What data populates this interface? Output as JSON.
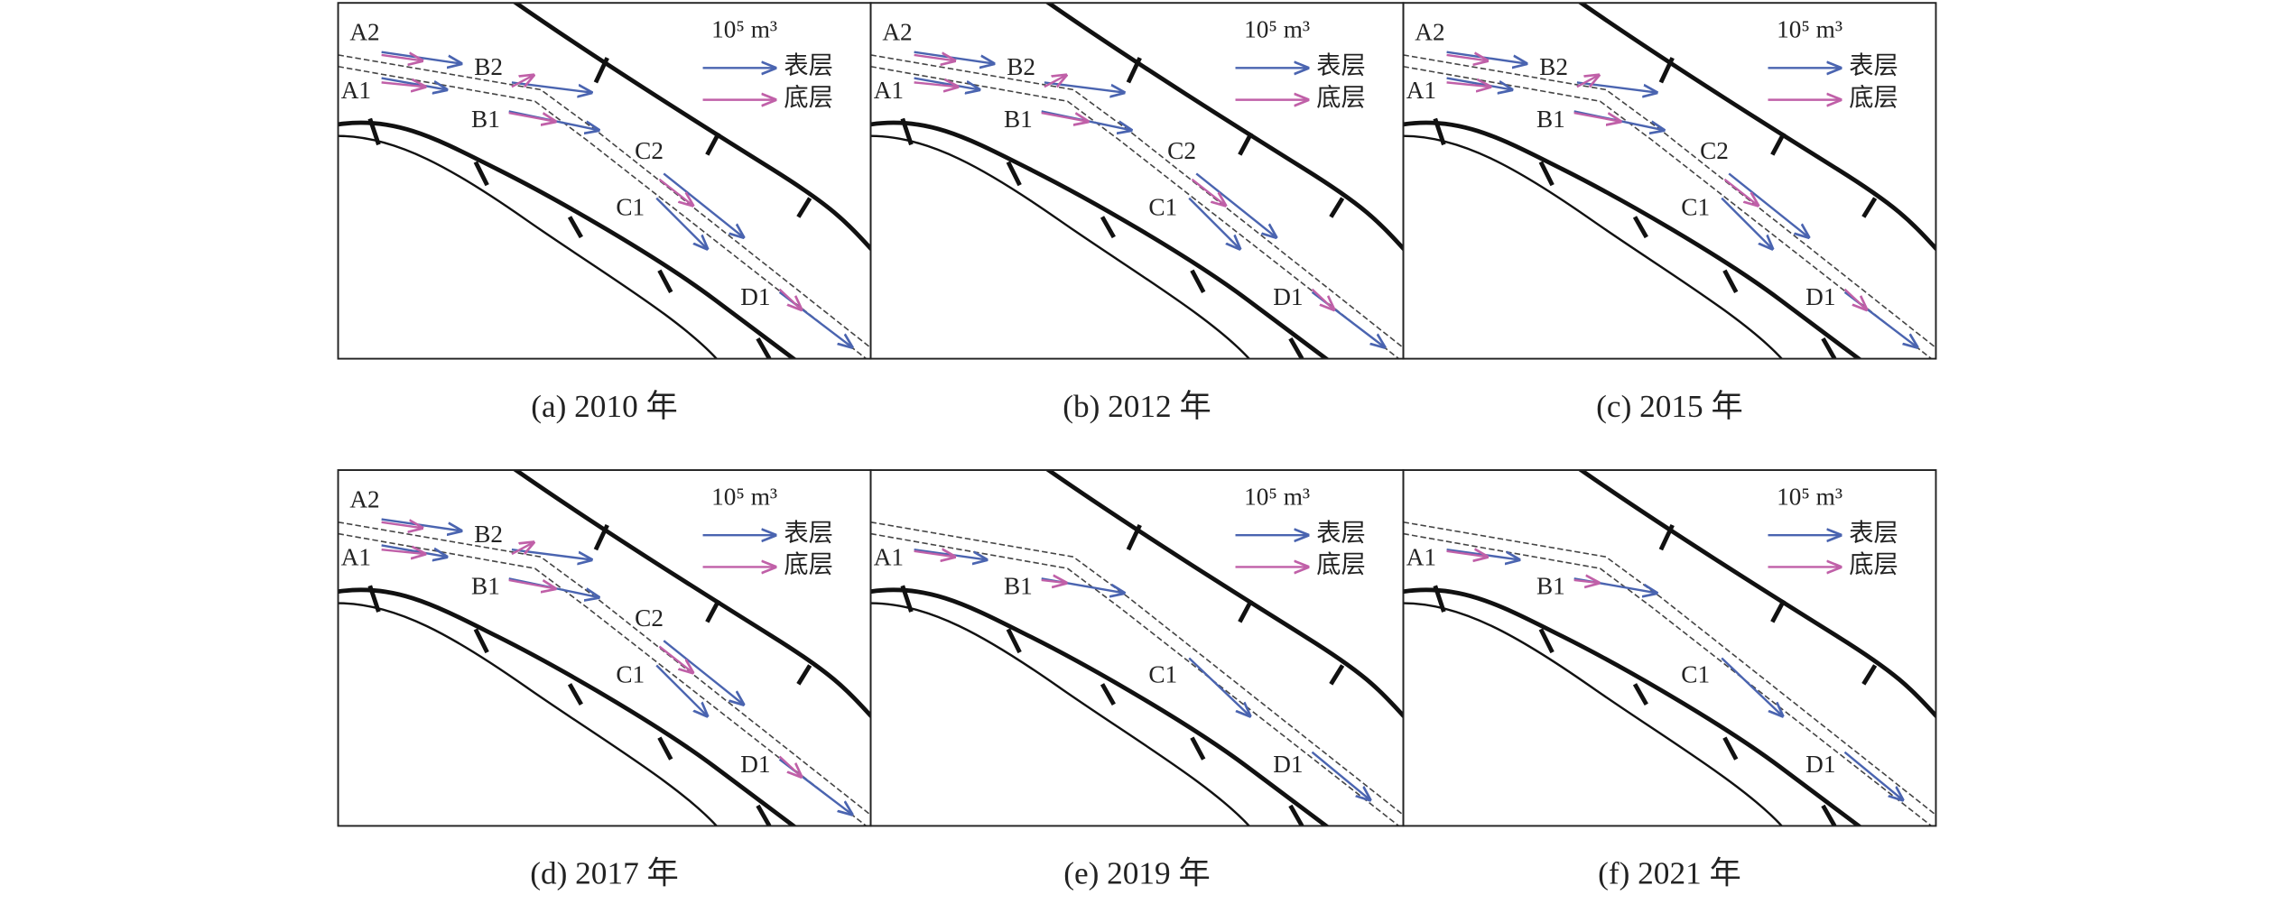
{
  "legend": {
    "unit": "10⁵ m³",
    "surface": "表层",
    "bottom": "底层"
  },
  "panels": [
    {
      "caption": "(a) 2010 年",
      "stations": [
        "A2",
        "B2",
        "A1",
        "B1",
        "C2",
        "C1",
        "D1"
      ]
    },
    {
      "caption": "(b) 2012 年",
      "stations": [
        "A2",
        "B2",
        "A1",
        "B1",
        "C2",
        "C1",
        "D1"
      ]
    },
    {
      "caption": "(c) 2015 年",
      "stations": [
        "A2",
        "B2",
        "A1",
        "B1",
        "C2",
        "C1",
        "D1"
      ]
    },
    {
      "caption": "(d) 2017 年",
      "stations": [
        "A2",
        "B2",
        "A1",
        "B1",
        "C2",
        "C1",
        "D1"
      ]
    },
    {
      "caption": "(e) 2019 年",
      "stations": [
        "A1",
        "B1",
        "C1",
        "D1"
      ]
    },
    {
      "caption": "(f) 2021 年",
      "stations": [
        "A1",
        "B1",
        "C1",
        "D1"
      ]
    }
  ]
}
